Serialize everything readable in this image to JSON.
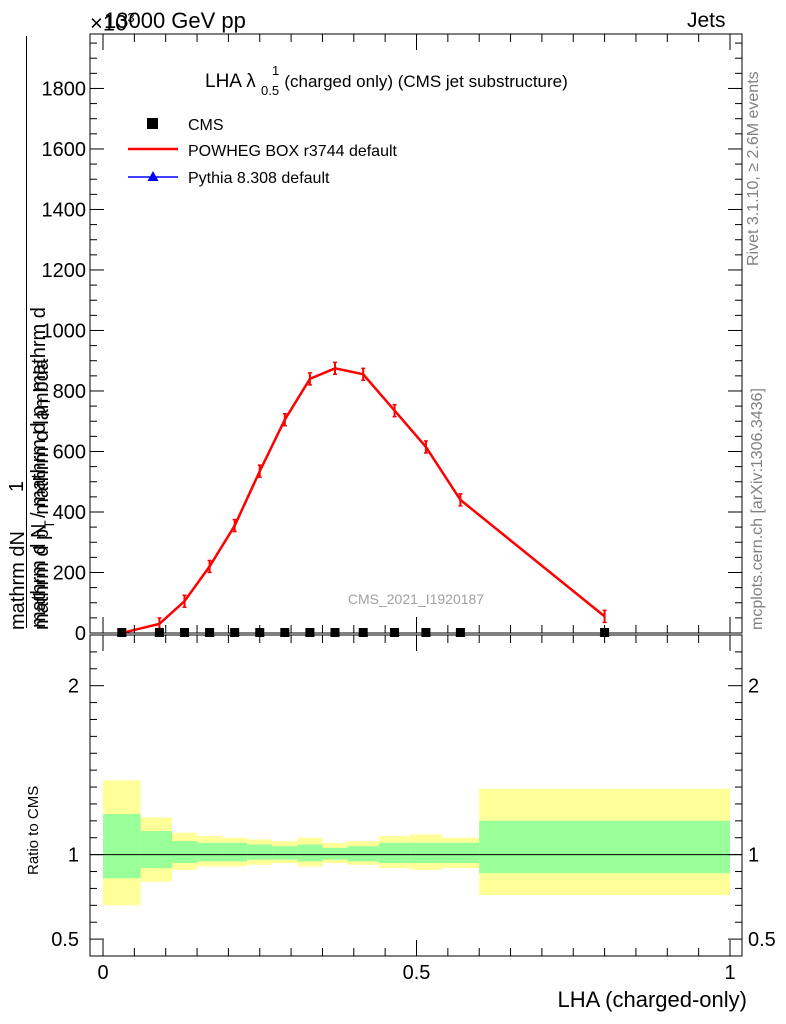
{
  "header": {
    "left": "13000 GeV pp",
    "right": "Jets",
    "scale_factor": "×10",
    "scale_exponent": "3"
  },
  "side_labels": {
    "rivet": "Rivet 3.1.10, ≥ 2.6M events",
    "mcplots": "mcplots.cern.ch [arXiv:1306.3436]"
  },
  "title": {
    "main": "LHA λ",
    "sup": "1",
    "sub": "0.5",
    "rest": " (charged only) (CMS jet substructure)"
  },
  "watermark": "CMS_2021_I1920187",
  "ylabel_main": {
    "one": "1",
    "denominator": "mathrm d N / mathrm d p",
    "denominator_sub": "T",
    "denominator_tail": " mathrm d",
    "numerator": "mathrm dN",
    "deriv": "mathrm d p",
    "deriv_sub": "T",
    "deriv_tail": " mathrm d lambda"
  },
  "ylabel_ratio": "Ratio to CMS",
  "xlabel": "LHA (charged-only)",
  "legend": {
    "cms": "CMS",
    "powheg": "POWHEG BOX r3744 default",
    "pythia": "Pythia 8.308 default"
  },
  "colors": {
    "powheg": "#ff0000",
    "pythia": "#0000ff",
    "band_inner": "#99ff99",
    "band_outer": "#ffff99"
  },
  "chart_data": [
    {
      "type": "line",
      "title": "LHA λ^1_0.5 (charged only) (CMS jet substructure)",
      "xlabel": "",
      "ylabel": "1 / (mathrm d N / mathrm d p_T mathrm d) · mathrm dN / (mathrm d p_T mathrm d lambda)",
      "xlim": [
        0,
        1
      ],
      "ylim": [
        0,
        1980
      ],
      "y_multiplier": "×10^3",
      "xticks": [],
      "yticks": [
        0,
        200,
        400,
        600,
        800,
        1000,
        1200,
        1400,
        1600,
        1800
      ],
      "ytick_labels": [
        "0",
        "200",
        "400",
        "600",
        "800",
        "1000",
        "1200",
        "1400",
        "1600",
        "1800"
      ],
      "series": [
        {
          "name": "CMS",
          "marker": "square",
          "x": [
            0.03,
            0.09,
            0.13,
            0.17,
            0.21,
            0.25,
            0.29,
            0.33,
            0.37,
            0.415,
            0.465,
            0.515,
            0.57,
            0.8
          ],
          "y": [
            0,
            0,
            0,
            0,
            0,
            0,
            0,
            0,
            0,
            0,
            0,
            0,
            0,
            0
          ]
        },
        {
          "name": "POWHEG BOX r3744 default",
          "x": [
            0.03,
            0.09,
            0.13,
            0.17,
            0.21,
            0.25,
            0.29,
            0.33,
            0.37,
            0.415,
            0.465,
            0.515,
            0.57,
            0.8
          ],
          "y": [
            0,
            30,
            105,
            220,
            355,
            535,
            705,
            840,
            875,
            855,
            735,
            615,
            440,
            55
          ]
        },
        {
          "name": "Pythia 8.308 default",
          "marker": "triangle",
          "x": [
            0.03,
            0.09,
            0.13,
            0.17,
            0.21,
            0.25,
            0.29,
            0.33,
            0.37,
            0.415,
            0.465,
            0.515,
            0.57,
            0.8
          ],
          "y": [
            0,
            0,
            0,
            0,
            0,
            0,
            0,
            0,
            0,
            0,
            0,
            0,
            0,
            0
          ]
        }
      ]
    },
    {
      "type": "area",
      "title": "",
      "xlabel": "LHA (charged-only)",
      "ylabel": "Ratio to CMS",
      "xlim": [
        0,
        1
      ],
      "ylim": [
        0.4,
        2.3
      ],
      "xticks": [
        0,
        0.5,
        1
      ],
      "xtick_labels": [
        "0",
        "0.5",
        "1"
      ],
      "yticks": [
        0.5,
        1,
        2
      ],
      "ytick_labels": [
        "0.5",
        "1",
        "2"
      ],
      "reference_line": 1,
      "bins": [
        {
          "lo": 0.0,
          "hi": 0.06,
          "inner": [
            0.86,
            1.24
          ],
          "outer": [
            0.7,
            1.44
          ]
        },
        {
          "lo": 0.06,
          "hi": 0.11,
          "inner": [
            0.92,
            1.14
          ],
          "outer": [
            0.84,
            1.22
          ]
        },
        {
          "lo": 0.11,
          "hi": 0.15,
          "inner": [
            0.95,
            1.08
          ],
          "outer": [
            0.91,
            1.13
          ]
        },
        {
          "lo": 0.15,
          "hi": 0.19,
          "inner": [
            0.96,
            1.07
          ],
          "outer": [
            0.93,
            1.11
          ]
        },
        {
          "lo": 0.19,
          "hi": 0.23,
          "inner": [
            0.96,
            1.07
          ],
          "outer": [
            0.93,
            1.1
          ]
        },
        {
          "lo": 0.23,
          "hi": 0.27,
          "inner": [
            0.97,
            1.06
          ],
          "outer": [
            0.94,
            1.09
          ]
        },
        {
          "lo": 0.27,
          "hi": 0.31,
          "inner": [
            0.97,
            1.05
          ],
          "outer": [
            0.95,
            1.08
          ]
        },
        {
          "lo": 0.31,
          "hi": 0.35,
          "inner": [
            0.96,
            1.06
          ],
          "outer": [
            0.93,
            1.1
          ]
        },
        {
          "lo": 0.35,
          "hi": 0.39,
          "inner": [
            0.97,
            1.04
          ],
          "outer": [
            0.95,
            1.07
          ]
        },
        {
          "lo": 0.39,
          "hi": 0.44,
          "inner": [
            0.96,
            1.05
          ],
          "outer": [
            0.94,
            1.08
          ]
        },
        {
          "lo": 0.44,
          "hi": 0.49,
          "inner": [
            0.95,
            1.07
          ],
          "outer": [
            0.92,
            1.11
          ]
        },
        {
          "lo": 0.49,
          "hi": 0.54,
          "inner": [
            0.95,
            1.07
          ],
          "outer": [
            0.91,
            1.12
          ]
        },
        {
          "lo": 0.54,
          "hi": 0.6,
          "inner": [
            0.95,
            1.07
          ],
          "outer": [
            0.92,
            1.1
          ]
        },
        {
          "lo": 0.6,
          "hi": 1.0,
          "inner": [
            0.89,
            1.2
          ],
          "outer": [
            0.76,
            1.39
          ]
        }
      ]
    }
  ]
}
